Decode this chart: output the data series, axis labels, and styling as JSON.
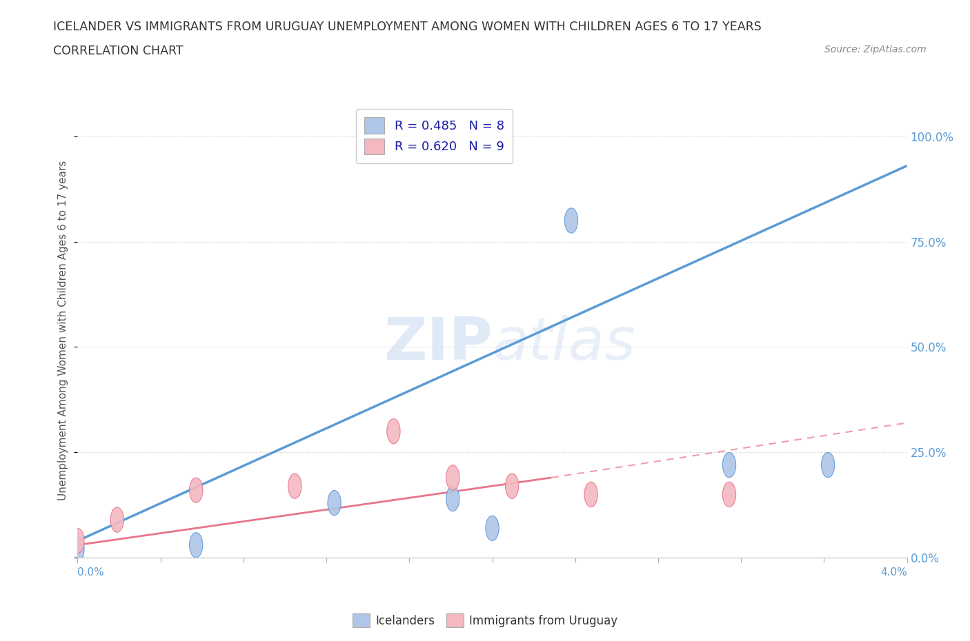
{
  "title_line1": "ICELANDER VS IMMIGRANTS FROM URUGUAY UNEMPLOYMENT AMONG WOMEN WITH CHILDREN AGES 6 TO 17 YEARS",
  "title_line2": "CORRELATION CHART",
  "source_text": "Source: ZipAtlas.com",
  "xlabel_bottom_left": "0.0%",
  "xlabel_bottom_right": "4.0%",
  "ylabel": "Unemployment Among Women with Children Ages 6 to 17 years",
  "watermark": "ZIPatlas",
  "legend_entries": [
    {
      "label": "R = 0.485   N = 8",
      "color": "#aec6e8"
    },
    {
      "label": "R = 0.620   N = 9",
      "color": "#f4b8c1"
    }
  ],
  "bottom_legend_icelanders": "Icelanders",
  "bottom_legend_uruguay": "Immigrants from Uruguay",
  "icelanders_scatter": [
    [
      0.0,
      0.02
    ],
    [
      0.006,
      0.03
    ],
    [
      0.013,
      0.13
    ],
    [
      0.019,
      0.14
    ],
    [
      0.021,
      0.07
    ],
    [
      0.025,
      0.8
    ],
    [
      0.033,
      0.22
    ],
    [
      0.038,
      0.22
    ]
  ],
  "uruguay_scatter": [
    [
      0.0,
      0.04
    ],
    [
      0.002,
      0.09
    ],
    [
      0.006,
      0.16
    ],
    [
      0.011,
      0.17
    ],
    [
      0.016,
      0.3
    ],
    [
      0.019,
      0.19
    ],
    [
      0.022,
      0.17
    ],
    [
      0.026,
      0.15
    ],
    [
      0.033,
      0.15
    ]
  ],
  "icelanders_trendline": [
    [
      0.0,
      0.04
    ],
    [
      0.042,
      0.93
    ]
  ],
  "uruguay_trendline_solid": [
    [
      0.0,
      0.03
    ],
    [
      0.024,
      0.19
    ]
  ],
  "uruguay_trendline_dashed": [
    [
      0.024,
      0.19
    ],
    [
      0.042,
      0.32
    ]
  ],
  "xmin": 0.0,
  "xmax": 0.042,
  "ymin": 0.0,
  "ymax": 1.08,
  "yticks": [
    0.0,
    0.25,
    0.5,
    0.75,
    1.0
  ],
  "ytick_labels": [
    "0.0%",
    "25.0%",
    "50.0%",
    "75.0%",
    "100.0%"
  ],
  "scatter_color_icelanders": "#aec6e8",
  "scatter_color_uruguay": "#f4b8c1",
  "trendline_color_icelanders": "#5b9bd5",
  "trendline_color_uruguay": "#e8748a",
  "background_color": "#ffffff",
  "grid_color": "#e0e0e0",
  "title_color": "#333333",
  "axis_label_color": "#555555",
  "right_axis_color": "#5b9bd5"
}
